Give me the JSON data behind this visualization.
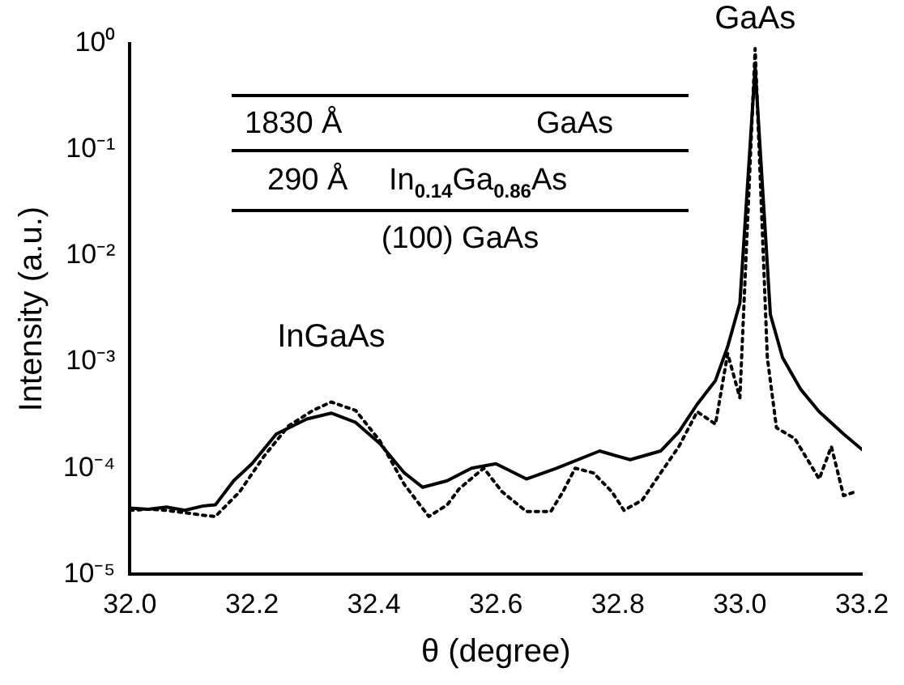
{
  "chart_data": {
    "type": "line",
    "xlabel": "θ (degree)",
    "ylabel": "Intensity (a.u.)",
    "log": "y",
    "xlim": [
      32.0,
      33.2
    ],
    "xticks": [
      {
        "value": 32,
        "label": "32.0"
      },
      32.2,
      32.4,
      32.6,
      32.8,
      {
        "value": 33,
        "label": "33.0"
      },
      33.2
    ],
    "ylim": [
      1e-05,
      1
    ],
    "yticks": [
      {
        "value": 1e-05,
        "label": "10⁻⁵"
      },
      {
        "value": 0.0001,
        "label": "10⁻⁴"
      },
      {
        "value": 0.001,
        "label": "10⁻³"
      },
      {
        "value": 0.01,
        "label": "10⁻²"
      },
      {
        "value": 0.1,
        "label": "10⁻¹"
      },
      {
        "value": 1,
        "label": "10⁰"
      }
    ],
    "grid": false,
    "legend": false,
    "marker": "none",
    "series": [
      {
        "color": "#000000",
        "line_style": "solid",
        "x": [
          32.0,
          32.03,
          32.06,
          32.09,
          32.12,
          32.14,
          32.17,
          32.2,
          32.24,
          32.29,
          32.33,
          32.37,
          32.41,
          32.45,
          32.48,
          32.52,
          32.56,
          32.6,
          32.65,
          32.7,
          32.77,
          32.82,
          32.87,
          32.9,
          32.93,
          32.96,
          32.98,
          33.0,
          33.025,
          33.05,
          33.07,
          33.1,
          33.13,
          33.17,
          33.2
        ],
        "values": [
          4.2e-05,
          4.1e-05,
          4.3e-05,
          4e-05,
          4.4e-05,
          4.5e-05,
          7.6e-05,
          0.00011,
          0.00021,
          0.00029,
          0.00033,
          0.00027,
          0.00017,
          9e-05,
          6.6e-05,
          7.6e-05,
          0.0001,
          0.00011,
          7.9e-05,
          0.0001,
          0.000145,
          0.00012,
          0.000145,
          0.00022,
          0.0004,
          0.00067,
          0.0014,
          0.0036,
          0.6,
          0.0028,
          0.0011,
          0.00055,
          0.00034,
          0.00021,
          0.00015
        ]
      },
      {
        "color": "#000000",
        "line_style": "dotted",
        "x": [
          32.0,
          32.03,
          32.06,
          32.09,
          32.12,
          32.14,
          32.18,
          32.22,
          32.26,
          32.3,
          32.33,
          32.37,
          32.41,
          32.45,
          32.49,
          32.52,
          32.54,
          32.58,
          32.61,
          32.65,
          32.69,
          32.71,
          32.73,
          32.76,
          32.79,
          32.81,
          32.84,
          32.87,
          32.9,
          32.93,
          32.96,
          32.98,
          33.0,
          33.025,
          33.045,
          33.06,
          33.09,
          33.13,
          33.15,
          33.17,
          33.19
        ],
        "values": [
          4e-05,
          4.1e-05,
          4e-05,
          3.8e-05,
          3.6e-05,
          3.5e-05,
          6e-05,
          0.00013,
          0.00025,
          0.00035,
          0.00042,
          0.00035,
          0.00018,
          7e-05,
          3.5e-05,
          4.5e-05,
          6.4e-05,
          0.0001,
          6e-05,
          3.9e-05,
          3.9e-05,
          6e-05,
          0.0001,
          9e-05,
          6e-05,
          4e-05,
          5e-05,
          9e-05,
          0.00016,
          0.00034,
          0.00026,
          0.0012,
          0.00046,
          0.9,
          0.0011,
          0.00024,
          0.00019,
          7.9e-05,
          0.00016,
          5.5e-05,
          6e-05
        ]
      }
    ],
    "annotations": [
      {
        "text": "InGaAs",
        "x": 32.33,
        "y": 0.00042
      },
      {
        "text": "GaAs",
        "x": 33.025,
        "y": 0.9
      },
      "1830 Å",
      "GaAs",
      "290 Å",
      "In$_{0.14}$Ga$_{0.86}$As",
      "(100) GaAs"
    ]
  }
}
